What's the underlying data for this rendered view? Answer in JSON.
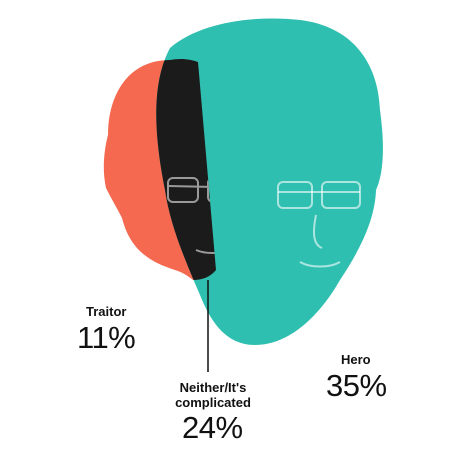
{
  "chart_data": {
    "type": "venn",
    "categories": [
      "Traitor",
      "Neither/It's complicated",
      "Hero"
    ],
    "values": [
      11,
      24,
      35
    ],
    "value_labels": [
      "11%",
      "24%",
      "35%"
    ],
    "series_colors": {
      "Traitor": "#f4694f",
      "Neither/It's complicated": "#1b1b1b",
      "Hero": "#2fbfb0"
    },
    "legend": "none"
  }
}
